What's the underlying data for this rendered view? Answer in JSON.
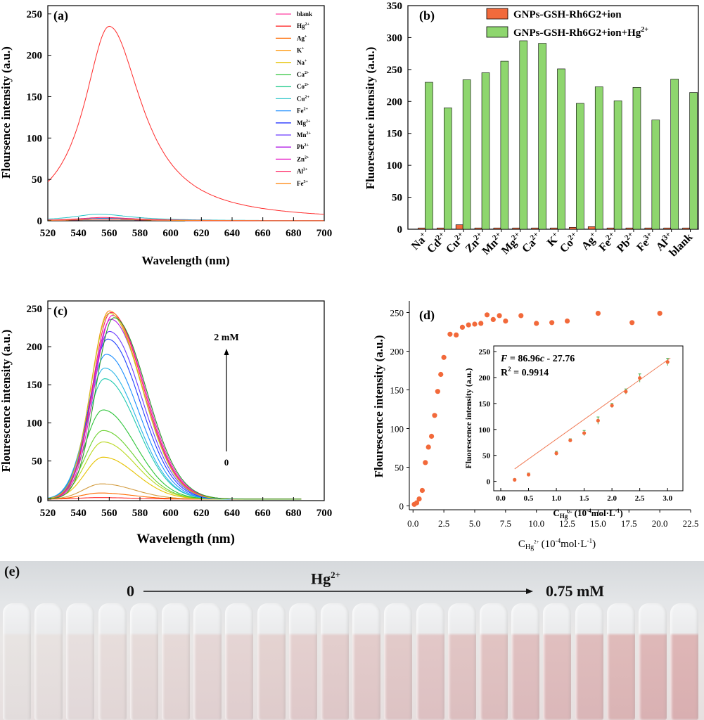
{
  "colors": {
    "axis": "#000000",
    "bar_orange": "#f26a3c",
    "bar_green": "#8ed66e",
    "scatter_orange": "#f2693a",
    "fit_line": "#f07a55",
    "error_green": "#4caf50",
    "red_curve": "#ff3a3a"
  },
  "chart_data": [
    {
      "panel": "(a)",
      "type": "line",
      "xlabel": "Wavelength (nm)",
      "ylabel": "Floursence intensity (a.u.)",
      "xlim": [
        520,
        700
      ],
      "ylim": [
        0,
        250
      ],
      "xticks": [
        "520",
        "540",
        "560",
        "580",
        "600",
        "620",
        "640",
        "660",
        "680",
        "700"
      ],
      "yticks": [
        "0",
        "50",
        "100",
        "150",
        "200",
        "250"
      ],
      "legend_position": "right",
      "series": [
        {
          "name": "blank",
          "color": "#ff3fa0",
          "peak_x": 558,
          "peak_y": 2
        },
        {
          "name": "Hg",
          "sup": "2+",
          "color": "#ff2b2b",
          "peak_x": 560,
          "peak_y": 235
        },
        {
          "name": "Ag",
          "sup": "+",
          "color": "#ff6a00",
          "peak_x": 558,
          "peak_y": 3
        },
        {
          "name": "K",
          "sup": "+",
          "color": "#ff9d1a",
          "peak_x": 558,
          "peak_y": 2
        },
        {
          "name": "Na",
          "sup": "+",
          "color": "#e6c200",
          "peak_x": 556,
          "peak_y": 2
        },
        {
          "name": "Ca",
          "sup": "2+",
          "color": "#2ec43a",
          "peak_x": 556,
          "peak_y": 2
        },
        {
          "name": "Co",
          "sup": "2+",
          "color": "#1ec98a",
          "peak_x": 556,
          "peak_y": 2
        },
        {
          "name": "Cu",
          "sup": "2+",
          "color": "#28c4c8",
          "peak_x": 553,
          "peak_y": 8
        },
        {
          "name": "Fe",
          "sup": "2+",
          "color": "#1a8cff",
          "peak_x": 556,
          "peak_y": 3
        },
        {
          "name": "Mg",
          "sup": "2+",
          "color": "#2030ff",
          "peak_x": 556,
          "peak_y": 2
        },
        {
          "name": "Mn",
          "sup": "2+",
          "color": "#6a3bff",
          "peak_x": 556,
          "peak_y": 2
        },
        {
          "name": "Pb",
          "sup": "2+",
          "color": "#b01ee6",
          "peak_x": 556,
          "peak_y": 2
        },
        {
          "name": "Zn",
          "sup": "2+",
          "color": "#e61ec8",
          "peak_x": 556,
          "peak_y": 2
        },
        {
          "name": "Al",
          "sup": "3+",
          "color": "#ff2060",
          "peak_x": 556,
          "peak_y": 4
        },
        {
          "name": "Fe",
          "sup": "3+",
          "color": "#ff8c1a",
          "peak_x": 556,
          "peak_y": 2
        }
      ]
    },
    {
      "panel": "(b)",
      "type": "bar",
      "ylabel": "Fluorescence intensity (a.u.)",
      "ylim": [
        0,
        350
      ],
      "yticks": [
        "0",
        "50",
        "100",
        "150",
        "200",
        "250",
        "300",
        "350"
      ],
      "legend_position": "top-right",
      "legend": [
        {
          "text": "GNPs-GSH-Rh6G2+ion",
          "sup": "",
          "color": "#f26a3c"
        },
        {
          "text": "GNPs-GSH-Rh6G2+ion+Hg",
          "sup": "2+",
          "color": "#8ed66e"
        }
      ],
      "categories": [
        {
          "name": "Na",
          "sup": "+"
        },
        {
          "name": "Cd",
          "sup": "2+"
        },
        {
          "name": "Cu",
          "sup": "2+"
        },
        {
          "name": "Zn",
          "sup": "2+"
        },
        {
          "name": "Mn",
          "sup": "2+"
        },
        {
          "name": "Mg",
          "sup": "2+"
        },
        {
          "name": "Ca",
          "sup": "2+"
        },
        {
          "name": "K",
          "sup": "+"
        },
        {
          "name": "Co",
          "sup": "2+"
        },
        {
          "name": "Ag",
          "sup": "+"
        },
        {
          "name": "Fe",
          "sup": "2+"
        },
        {
          "name": "Pb",
          "sup": "2+"
        },
        {
          "name": "Fe",
          "sup": "3+"
        },
        {
          "name": "Al",
          "sup": "3+"
        },
        {
          "name": "blank",
          "sup": ""
        }
      ],
      "series": [
        {
          "name": "GNPs-GSH-Rh6G2+ion",
          "values": [
            2,
            2,
            7,
            2,
            2,
            2,
            2,
            2,
            3,
            4,
            2,
            2,
            2,
            2,
            2
          ]
        },
        {
          "name": "GNPs-GSH-Rh6G2+ion+Hg2+",
          "values": [
            230,
            190,
            234,
            245,
            263,
            295,
            291,
            251,
            197,
            223,
            201,
            222,
            171,
            235,
            214
          ]
        }
      ]
    },
    {
      "panel": "(c)",
      "type": "line",
      "xlabel": "Wavelength (nm)",
      "ylabel": "Flourescence intensity (a.u.)",
      "xlim": [
        520,
        700
      ],
      "ylim": [
        0,
        260
      ],
      "xticks": [
        "520",
        "540",
        "560",
        "580",
        "600",
        "620",
        "640",
        "660",
        "680",
        "700"
      ],
      "yticks": [
        "0",
        "50",
        "100",
        "150",
        "200",
        "250"
      ],
      "annotation_top": "2 mM",
      "annotation_bottom": "0",
      "series_peaks": [
        {
          "peak_x": 553,
          "peak_y": 2,
          "color": "#ff2b2b"
        },
        {
          "peak_x": 554,
          "peak_y": 8,
          "color": "#ff6a00"
        },
        {
          "peak_x": 555,
          "peak_y": 20,
          "color": "#d29a3c"
        },
        {
          "peak_x": 556,
          "peak_y": 55,
          "color": "#e6c200"
        },
        {
          "peak_x": 556,
          "peak_y": 75,
          "color": "#b8d81e"
        },
        {
          "peak_x": 556,
          "peak_y": 90,
          "color": "#6ad12e"
        },
        {
          "peak_x": 556,
          "peak_y": 117,
          "color": "#2ec43a"
        },
        {
          "peak_x": 557,
          "peak_y": 158,
          "color": "#1ec9b0"
        },
        {
          "peak_x": 557,
          "peak_y": 172,
          "color": "#28b4e6"
        },
        {
          "peak_x": 558,
          "peak_y": 190,
          "color": "#1a8cff"
        },
        {
          "peak_x": 559,
          "peak_y": 210,
          "color": "#2040ff"
        },
        {
          "peak_x": 560,
          "peak_y": 220,
          "color": "#6a3bff"
        },
        {
          "peak_x": 561,
          "peak_y": 236,
          "color": "#b01ee6"
        },
        {
          "peak_x": 562,
          "peak_y": 241,
          "color": "#e61ec8"
        },
        {
          "peak_x": 561,
          "peak_y": 245,
          "color": "#ff2060"
        },
        {
          "peak_x": 560,
          "peak_y": 247,
          "color": "#ff8c1a"
        },
        {
          "peak_x": 560,
          "peak_y": 244,
          "color": "#c7c71e"
        },
        {
          "peak_x": 563,
          "peak_y": 238,
          "color": "#2a9a2a"
        }
      ]
    },
    {
      "panel": "(d)",
      "type": "scatter",
      "xlabel": "C",
      "xlabel_sub": "Hg",
      "xlabel_sub_sup": "2+",
      "xlabel_unit": "(10",
      "xlabel_unit_sup": "-4",
      "xlabel_unit_tail": "mol·L",
      "xlabel_unit_tail_sup": "-1",
      "xlabel_close": ")",
      "ylabel": "Flourescence intensity (a.u.)",
      "xlim": [
        -0.3,
        22.5
      ],
      "ylim": [
        -5,
        265
      ],
      "xticks": [
        "0.0",
        "2.5",
        "5.0",
        "7.5",
        "10.0",
        "12.5",
        "15.0",
        "17.5",
        "20.0",
        "22.5"
      ],
      "yticks": [
        "0",
        "50",
        "100",
        "150",
        "200",
        "250"
      ],
      "x": [
        0.1,
        0.3,
        0.5,
        0.75,
        1.0,
        1.25,
        1.5,
        1.75,
        2.0,
        2.25,
        2.5,
        3.0,
        3.5,
        4.0,
        4.5,
        5.0,
        5.5,
        6.0,
        6.5,
        7.0,
        7.5,
        8.75,
        10.0,
        11.25,
        12.5,
        15.0,
        17.75,
        20.0
      ],
      "y": [
        2,
        4,
        9,
        20,
        56,
        76,
        90,
        117,
        148,
        170,
        192,
        222,
        221,
        231,
        234,
        235,
        236,
        247,
        241,
        246,
        239,
        246,
        236,
        237,
        239,
        249,
        237,
        249
      ],
      "inset": {
        "fit_equation_prefix": "F",
        "fit_equation_body": " = 86.96",
        "fit_equation_var": "c",
        "fit_equation_tail": " - 27.76",
        "r2_text": "R",
        "r2_sup": "2",
        "r2_value": " = 0.9914",
        "ylabel": "Fluorescence intensity (a.u.)",
        "xlabel": "C",
        "xlabel_sub": "Hg",
        "xlabel_sub_sup": "2+",
        "xlabel_unit": "(10",
        "xlabel_unit_sup": "-4",
        "xlabel_unit_tail": "mol·L",
        "xlabel_unit_tail_sup": "-1",
        "xlabel_close": ")",
        "xlim": [
          0,
          3.2
        ],
        "ylim": [
          -10,
          250
        ],
        "xticks": [
          "0.0",
          "0.5",
          "1.0",
          "1.5",
          "2.0",
          "2.5",
          "3.0"
        ],
        "yticks": [
          "0",
          "50",
          "100",
          "150",
          "200",
          "250"
        ],
        "x": [
          0.25,
          0.5,
          1.0,
          1.25,
          1.5,
          1.75,
          2.0,
          2.25,
          2.5,
          3.0
        ],
        "y": [
          3,
          13,
          54,
          79,
          93,
          117,
          146,
          173,
          199,
          230
        ],
        "err": [
          2,
          3,
          4,
          3,
          5,
          7,
          4,
          5,
          8,
          7
        ],
        "fit_slope": 86.96,
        "fit_intercept": -27.76
      }
    }
  ],
  "photo": {
    "label": "(e)",
    "ion": "Hg",
    "ion_sup": "2+",
    "start": "0",
    "end": "0.75 mM"
  }
}
